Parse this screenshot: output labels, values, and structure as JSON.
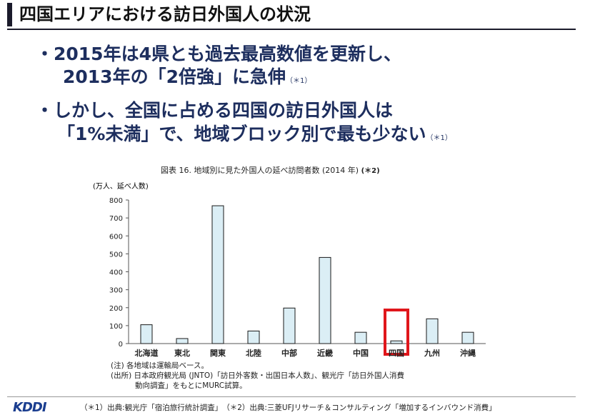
{
  "title": "四国エリアにおける訪日外国人の状況",
  "bullets": [
    {
      "line1": "・2015年は4県とも過去最高数値を更新し、",
      "line2": "2013年の「2倍強」に急伸",
      "note": "（＊1）"
    },
    {
      "line1": "・しかし、全国に占める四国の訪日外国人は",
      "line2": "「1%未満」で、地域ブロック別で最も少ない",
      "note": "（＊1）"
    }
  ],
  "chart_title": "図表 16. 地域別に見た外国人の延べ訪問者数 (2014 年)",
  "chart_title_note": "(＊2)",
  "chart_notes": [
    "(注) 各地域は運輸局ベース。",
    "(出所) 日本政府観光局 (JNTO)「訪日外客数・出国日本人数」、観光庁「訪日外国人消費",
    "動向調査」をもとにMURC試算。"
  ],
  "footer": "（＊1）出典:観光庁「宿泊旅行統計調査」　（＊2）出典:三菱UFJリサーチ＆コンサルティング「増加するインバウンド消費」",
  "logo": "KDDI",
  "colors": {
    "bar_fill": "#dbeef5",
    "bar_stroke": "#1a1a1a",
    "highlight": "#e0161b",
    "bullet_text": "#1d2e5e"
  },
  "chart_data": {
    "type": "bar",
    "title": "図表 16. 地域別に見た外国人の延べ訪問者数 (2014 年)",
    "ylabel": "(万人、延べ人数)",
    "xlabel": "",
    "categories": [
      "北海道",
      "東北",
      "関東",
      "北陸",
      "中部",
      "近畿",
      "中国",
      "四国",
      "九州",
      "沖縄"
    ],
    "values": [
      105,
      28,
      768,
      70,
      198,
      480,
      63,
      15,
      138,
      63
    ],
    "ylim": [
      0,
      800
    ],
    "yticks": [
      0,
      100,
      200,
      300,
      400,
      500,
      600,
      700,
      800
    ],
    "highlight_category": "四国",
    "grid": false
  }
}
